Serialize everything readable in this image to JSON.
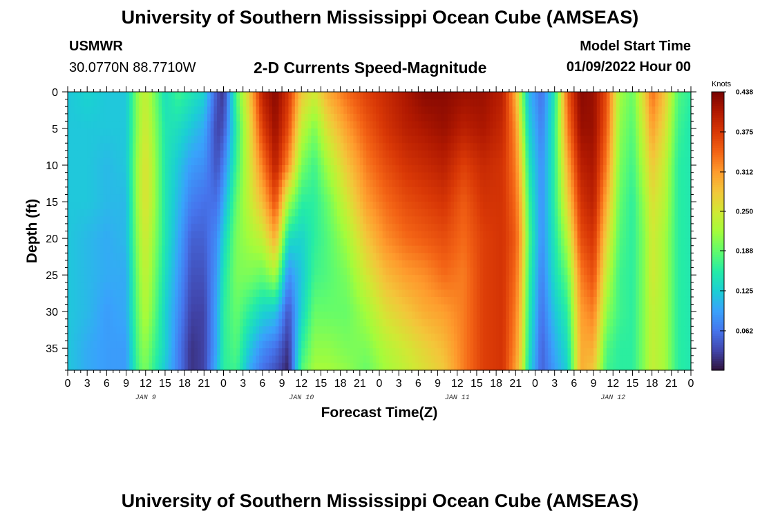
{
  "header": {
    "title": "University of Southern Mississippi Ocean Cube (AMSEAS)",
    "station_id": "USMWR",
    "coordinates": "30.0770N  88.7710W",
    "plot_title": "2-D Currents Speed-Magnitude",
    "model_start_label": "Model Start Time",
    "model_start_value": "01/09/2022 Hour 00"
  },
  "footer": {
    "title": "University of Southern Mississippi Ocean Cube (AMSEAS)"
  },
  "colors": {
    "colormap": [
      "#30123b",
      "#4145ab",
      "#4675ed",
      "#39a2fc",
      "#1bcfd4",
      "#24eca6",
      "#61fc6c",
      "#a4fc3b",
      "#d1e834",
      "#f3c63a",
      "#fe9b2d",
      "#f36315",
      "#d93806",
      "#b11901",
      "#7a0402"
    ]
  },
  "chart_data": {
    "type": "heatmap",
    "title": "2-D Currents Speed-Magnitude",
    "xlabel": "Forecast Time(Z)",
    "ylabel": "Depth (ft)",
    "x_unit": "hours since 01/09/2022 00Z",
    "xlim": [
      0,
      96
    ],
    "ylim": [
      38,
      0
    ],
    "x_ticks": [
      0,
      3,
      6,
      9,
      12,
      15,
      18,
      21,
      24,
      27,
      30,
      33,
      36,
      39,
      42,
      45,
      48,
      51,
      54,
      57,
      60,
      63,
      66,
      69,
      72,
      75,
      78,
      81,
      84,
      87,
      90,
      93,
      96
    ],
    "x_tick_labels": [
      "0",
      "3",
      "6",
      "9",
      "12",
      "15",
      "18",
      "21",
      "0",
      "3",
      "6",
      "9",
      "12",
      "15",
      "18",
      "21",
      "0",
      "3",
      "6",
      "9",
      "12",
      "15",
      "18",
      "21",
      "0",
      "3",
      "6",
      "9",
      "12",
      "15",
      "18",
      "21",
      "0"
    ],
    "y_ticks": [
      0,
      5,
      10,
      15,
      20,
      25,
      30,
      35
    ],
    "y_tick_labels": [
      "0",
      "5",
      "10",
      "15",
      "20",
      "25",
      "30",
      "35"
    ],
    "day_labels": [
      {
        "hour": 12,
        "label": "JAN 9"
      },
      {
        "hour": 36,
        "label": "JAN 10"
      },
      {
        "hour": 60,
        "label": "JAN 11"
      },
      {
        "hour": 84,
        "label": "JAN 12"
      }
    ],
    "colorbar": {
      "unit": "Knots",
      "min": 0.0,
      "max": 0.438,
      "ticks": [
        0.062,
        0.125,
        0.188,
        0.25,
        0.312,
        0.375,
        0.438
      ],
      "tick_labels": [
        "0.062",
        "0.125",
        "0.188",
        "0.250",
        "0.312",
        "0.375",
        "0.438"
      ]
    },
    "depths_ft": [
      0,
      5,
      10,
      15,
      20,
      25,
      30,
      35,
      38
    ],
    "speed_knots_by_hour": [
      {
        "hour": 0,
        "values": [
          0.12,
          0.12,
          0.12,
          0.12,
          0.12,
          0.12,
          0.12,
          0.12,
          0.12
        ]
      },
      {
        "hour": 3,
        "values": [
          0.13,
          0.12,
          0.12,
          0.12,
          0.11,
          0.11,
          0.11,
          0.1,
          0.1
        ]
      },
      {
        "hour": 6,
        "values": [
          0.12,
          0.12,
          0.11,
          0.11,
          0.1,
          0.1,
          0.09,
          0.09,
          0.09
        ]
      },
      {
        "hour": 9,
        "values": [
          0.12,
          0.12,
          0.12,
          0.11,
          0.11,
          0.1,
          0.1,
          0.09,
          0.09
        ]
      },
      {
        "hour": 11,
        "values": [
          0.22,
          0.22,
          0.23,
          0.23,
          0.22,
          0.21,
          0.2,
          0.19,
          0.18
        ]
      },
      {
        "hour": 12,
        "values": [
          0.24,
          0.25,
          0.26,
          0.26,
          0.25,
          0.24,
          0.23,
          0.21,
          0.2
        ]
      },
      {
        "hour": 13,
        "values": [
          0.21,
          0.22,
          0.23,
          0.23,
          0.22,
          0.21,
          0.2,
          0.18,
          0.17
        ]
      },
      {
        "hour": 15,
        "values": [
          0.14,
          0.15,
          0.15,
          0.15,
          0.15,
          0.14,
          0.13,
          0.13,
          0.12
        ]
      },
      {
        "hour": 17,
        "values": [
          0.17,
          0.14,
          0.12,
          0.11,
          0.1,
          0.09,
          0.08,
          0.07,
          0.07
        ]
      },
      {
        "hour": 19,
        "values": [
          0.15,
          0.12,
          0.09,
          0.07,
          0.05,
          0.04,
          0.03,
          0.02,
          0.02
        ]
      },
      {
        "hour": 21,
        "values": [
          0.13,
          0.1,
          0.08,
          0.06,
          0.05,
          0.04,
          0.03,
          0.03,
          0.03
        ]
      },
      {
        "hour": 23,
        "values": [
          0.04,
          0.03,
          0.04,
          0.06,
          0.08,
          0.09,
          0.1,
          0.1,
          0.11
        ]
      },
      {
        "hour": 24,
        "values": [
          0.02,
          0.04,
          0.07,
          0.1,
          0.13,
          0.15,
          0.16,
          0.16,
          0.16
        ]
      },
      {
        "hour": 26,
        "values": [
          0.18,
          0.16,
          0.17,
          0.19,
          0.2,
          0.2,
          0.19,
          0.18,
          0.17
        ]
      },
      {
        "hour": 28,
        "values": [
          0.28,
          0.26,
          0.25,
          0.24,
          0.22,
          0.2,
          0.16,
          0.12,
          0.1
        ]
      },
      {
        "hour": 30,
        "values": [
          0.4,
          0.37,
          0.33,
          0.29,
          0.24,
          0.19,
          0.13,
          0.08,
          0.06
        ]
      },
      {
        "hour": 32,
        "values": [
          0.43,
          0.42,
          0.4,
          0.36,
          0.3,
          0.22,
          0.12,
          0.06,
          0.04
        ]
      },
      {
        "hour": 34,
        "values": [
          0.38,
          0.36,
          0.32,
          0.22,
          0.14,
          0.08,
          0.04,
          0.02,
          0.01
        ]
      },
      {
        "hour": 36,
        "values": [
          0.28,
          0.24,
          0.2,
          0.16,
          0.13,
          0.12,
          0.13,
          0.16,
          0.18
        ]
      },
      {
        "hour": 38,
        "values": [
          0.25,
          0.2,
          0.17,
          0.16,
          0.16,
          0.17,
          0.19,
          0.21,
          0.22
        ]
      },
      {
        "hour": 40,
        "values": [
          0.3,
          0.26,
          0.22,
          0.19,
          0.18,
          0.18,
          0.19,
          0.21,
          0.22
        ]
      },
      {
        "hour": 43,
        "values": [
          0.34,
          0.31,
          0.28,
          0.25,
          0.22,
          0.2,
          0.19,
          0.2,
          0.21
        ]
      },
      {
        "hour": 46,
        "values": [
          0.37,
          0.35,
          0.33,
          0.31,
          0.28,
          0.25,
          0.22,
          0.2,
          0.19
        ]
      },
      {
        "hour": 49,
        "values": [
          0.39,
          0.38,
          0.36,
          0.34,
          0.32,
          0.29,
          0.26,
          0.23,
          0.22
        ]
      },
      {
        "hour": 52,
        "values": [
          0.41,
          0.4,
          0.38,
          0.36,
          0.34,
          0.31,
          0.28,
          0.25,
          0.24
        ]
      },
      {
        "hour": 55,
        "values": [
          0.43,
          0.41,
          0.39,
          0.37,
          0.35,
          0.32,
          0.3,
          0.27,
          0.26
        ]
      },
      {
        "hour": 58,
        "values": [
          0.43,
          0.42,
          0.4,
          0.38,
          0.36,
          0.34,
          0.31,
          0.29,
          0.28
        ]
      },
      {
        "hour": 61,
        "values": [
          0.42,
          0.4,
          0.37,
          0.35,
          0.34,
          0.33,
          0.33,
          0.33,
          0.33
        ]
      },
      {
        "hour": 64,
        "values": [
          0.42,
          0.41,
          0.39,
          0.38,
          0.37,
          0.37,
          0.37,
          0.37,
          0.37
        ]
      },
      {
        "hour": 67,
        "values": [
          0.4,
          0.39,
          0.38,
          0.38,
          0.38,
          0.38,
          0.38,
          0.38,
          0.38
        ]
      },
      {
        "hour": 69,
        "values": [
          0.3,
          0.32,
          0.33,
          0.34,
          0.35,
          0.34,
          0.33,
          0.32,
          0.31
        ]
      },
      {
        "hour": 70,
        "values": [
          0.2,
          0.23,
          0.26,
          0.28,
          0.29,
          0.28,
          0.27,
          0.26,
          0.25
        ]
      },
      {
        "hour": 71,
        "values": [
          0.11,
          0.13,
          0.15,
          0.17,
          0.18,
          0.17,
          0.16,
          0.15,
          0.14
        ]
      },
      {
        "hour": 73,
        "values": [
          0.06,
          0.07,
          0.08,
          0.08,
          0.08,
          0.07,
          0.06,
          0.05,
          0.05
        ]
      },
      {
        "hour": 75,
        "values": [
          0.15,
          0.16,
          0.16,
          0.16,
          0.15,
          0.14,
          0.12,
          0.1,
          0.09
        ]
      },
      {
        "hour": 77,
        "values": [
          0.35,
          0.33,
          0.3,
          0.27,
          0.23,
          0.19,
          0.16,
          0.14,
          0.13
        ]
      },
      {
        "hour": 79,
        "values": [
          0.43,
          0.42,
          0.4,
          0.38,
          0.36,
          0.33,
          0.31,
          0.3,
          0.3
        ]
      },
      {
        "hour": 81,
        "values": [
          0.42,
          0.42,
          0.41,
          0.4,
          0.38,
          0.36,
          0.33,
          0.3,
          0.28
        ]
      },
      {
        "hour": 83,
        "values": [
          0.36,
          0.35,
          0.33,
          0.3,
          0.27,
          0.24,
          0.21,
          0.18,
          0.17
        ]
      },
      {
        "hour": 85,
        "values": [
          0.22,
          0.21,
          0.2,
          0.19,
          0.18,
          0.17,
          0.17,
          0.16,
          0.16
        ]
      },
      {
        "hour": 87,
        "values": [
          0.19,
          0.18,
          0.17,
          0.16,
          0.16,
          0.16,
          0.16,
          0.16,
          0.16
        ]
      },
      {
        "hour": 89,
        "values": [
          0.28,
          0.26,
          0.24,
          0.22,
          0.21,
          0.21,
          0.21,
          0.21,
          0.21
        ]
      },
      {
        "hour": 90,
        "values": [
          0.34,
          0.31,
          0.28,
          0.26,
          0.25,
          0.25,
          0.24,
          0.24,
          0.24
        ]
      },
      {
        "hour": 92,
        "values": [
          0.28,
          0.26,
          0.24,
          0.23,
          0.22,
          0.22,
          0.22,
          0.22,
          0.22
        ]
      },
      {
        "hour": 94,
        "values": [
          0.18,
          0.17,
          0.16,
          0.16,
          0.16,
          0.16,
          0.16,
          0.16,
          0.16
        ]
      },
      {
        "hour": 96,
        "values": [
          0.16,
          0.15,
          0.15,
          0.15,
          0.15,
          0.15,
          0.15,
          0.15,
          0.15
        ]
      }
    ]
  }
}
